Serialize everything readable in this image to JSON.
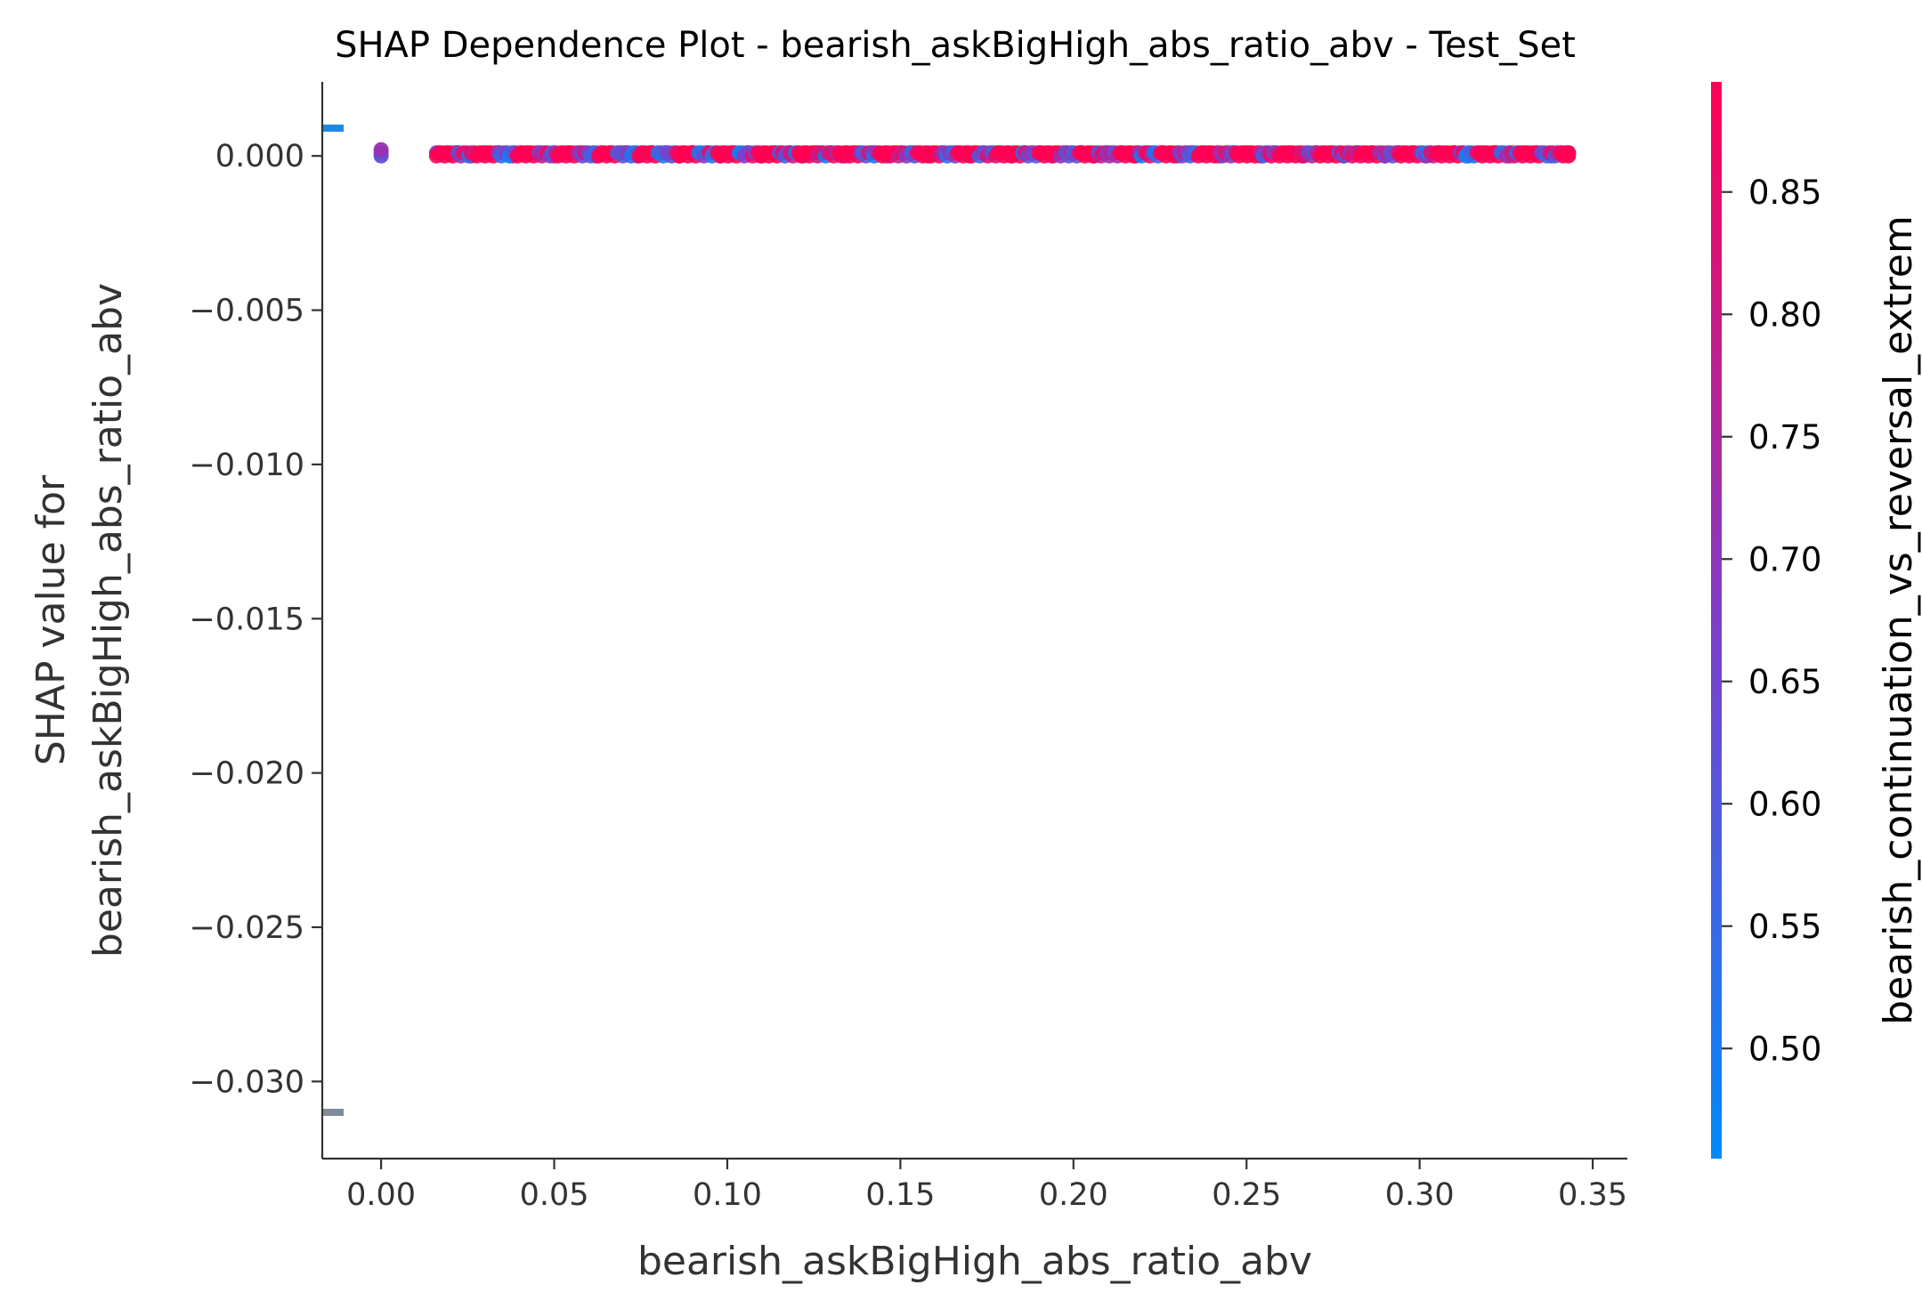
{
  "chart_data": {
    "type": "scatter",
    "title": "SHAP Dependence Plot - bearish_askBigHigh_abs_ratio_abv - Test_Set",
    "xlabel": "bearish_askBigHigh_abs_ratio_abv",
    "ylabel_lines": [
      "SHAP value for",
      "bearish_askBigHigh_abs_ratio_abv"
    ],
    "xlim": [
      -0.017,
      0.36
    ],
    "ylim": [
      -0.0325,
      0.0024
    ],
    "xticks": [
      0.0,
      0.05,
      0.1,
      0.15,
      0.2,
      0.25,
      0.3,
      0.35
    ],
    "xtick_labels": [
      "0.00",
      "0.05",
      "0.10",
      "0.15",
      "0.20",
      "0.25",
      "0.30",
      "0.35"
    ],
    "yticks": [
      0.0,
      -0.005,
      -0.01,
      -0.015,
      -0.02,
      -0.025,
      -0.03
    ],
    "ytick_labels": [
      "0.000",
      "−0.005",
      "−0.010",
      "−0.015",
      "−0.020",
      "−0.025",
      "−0.030"
    ],
    "grid": false,
    "marker_color_scale": {
      "low": "#008afb",
      "mid": "#7f3ec8",
      "high": "#ff0052"
    },
    "series": [
      {
        "points": [
          {
            "x": 0.0,
            "y": 0.0001,
            "c": 0.68
          },
          {
            "x": 0.0,
            "y": 0.0,
            "c": 0.62
          },
          {
            "x": 0.0,
            "y": 0.0002,
            "c": 0.72
          },
          {
            "x": 0.016,
            "y": 0.0001,
            "c": 0.66
          },
          {
            "x": 0.019,
            "y": 0.0001,
            "c": 0.64
          },
          {
            "x": 0.022,
            "y": 0.0001,
            "c": 0.74
          },
          {
            "x": 0.026,
            "y": 0.0,
            "c": 0.82
          },
          {
            "x": 0.03,
            "y": 0.0001,
            "c": 0.6
          },
          {
            "x": 0.034,
            "y": 0.0001,
            "c": 0.78
          },
          {
            "x": 0.038,
            "y": 0.0,
            "c": 0.86
          },
          {
            "x": 0.042,
            "y": 0.0001,
            "c": 0.7
          },
          {
            "x": 0.046,
            "y": 0.0001,
            "c": 0.55
          },
          {
            "x": 0.05,
            "y": 0.0,
            "c": 0.84
          },
          {
            "x": 0.054,
            "y": 0.0001,
            "c": 0.66
          },
          {
            "x": 0.058,
            "y": 0.0001,
            "c": 0.8
          },
          {
            "x": 0.062,
            "y": 0.0,
            "c": 0.72
          },
          {
            "x": 0.066,
            "y": 0.0001,
            "c": 0.58
          },
          {
            "x": 0.07,
            "y": 0.0001,
            "c": 0.88
          },
          {
            "x": 0.074,
            "y": 0.0,
            "c": 0.64
          },
          {
            "x": 0.078,
            "y": 0.0001,
            "c": 0.76
          },
          {
            "x": 0.082,
            "y": 0.0001,
            "c": 0.52
          },
          {
            "x": 0.086,
            "y": 0.0,
            "c": 0.83
          },
          {
            "x": 0.09,
            "y": 0.0001,
            "c": 0.69
          },
          {
            "x": 0.094,
            "y": 0.0001,
            "c": 0.61
          },
          {
            "x": 0.098,
            "y": 0.0,
            "c": 0.87
          },
          {
            "x": 0.102,
            "y": 0.0001,
            "c": 0.74
          },
          {
            "x": 0.106,
            "y": 0.0001,
            "c": 0.5
          },
          {
            "x": 0.11,
            "y": 0.0,
            "c": 0.81
          },
          {
            "x": 0.114,
            "y": 0.0001,
            "c": 0.67
          },
          {
            "x": 0.118,
            "y": 0.0001,
            "c": 0.79
          },
          {
            "x": 0.122,
            "y": 0.0,
            "c": 0.63
          },
          {
            "x": 0.126,
            "y": 0.0001,
            "c": 0.85
          },
          {
            "x": 0.13,
            "y": 0.0001,
            "c": 0.57
          },
          {
            "x": 0.134,
            "y": 0.0,
            "c": 0.73
          },
          {
            "x": 0.138,
            "y": 0.0001,
            "c": 0.88
          },
          {
            "x": 0.142,
            "y": 0.0001,
            "c": 0.65
          },
          {
            "x": 0.146,
            "y": 0.0,
            "c": 0.54
          },
          {
            "x": 0.15,
            "y": 0.0001,
            "c": 0.82
          },
          {
            "x": 0.154,
            "y": 0.0001,
            "c": 0.7
          },
          {
            "x": 0.158,
            "y": 0.0,
            "c": 0.77
          },
          {
            "x": 0.162,
            "y": 0.0001,
            "c": 0.6
          },
          {
            "x": 0.166,
            "y": 0.0001,
            "c": 0.86
          },
          {
            "x": 0.17,
            "y": 0.0,
            "c": 0.66
          },
          {
            "x": 0.174,
            "y": 0.0001,
            "c": 0.51
          },
          {
            "x": 0.178,
            "y": 0.0001,
            "c": 0.8
          },
          {
            "x": 0.182,
            "y": 0.0,
            "c": 0.72
          },
          {
            "x": 0.186,
            "y": 0.0001,
            "c": 0.84
          },
          {
            "x": 0.19,
            "y": 0.0001,
            "c": 0.62
          },
          {
            "x": 0.194,
            "y": 0.0,
            "c": 0.49
          },
          {
            "x": 0.198,
            "y": 0.0001,
            "c": 0.75
          },
          {
            "x": 0.202,
            "y": 0.0001,
            "c": 0.87
          },
          {
            "x": 0.206,
            "y": 0.0,
            "c": 0.68
          },
          {
            "x": 0.21,
            "y": 0.0001,
            "c": 0.56
          },
          {
            "x": 0.214,
            "y": 0.0001,
            "c": 0.83
          },
          {
            "x": 0.218,
            "y": 0.0,
            "c": 0.71
          },
          {
            "x": 0.222,
            "y": 0.0001,
            "c": 0.64
          },
          {
            "x": 0.226,
            "y": 0.0001,
            "c": 0.86
          },
          {
            "x": 0.23,
            "y": 0.0,
            "c": 0.53
          },
          {
            "x": 0.234,
            "y": 0.0001,
            "c": 0.78
          },
          {
            "x": 0.238,
            "y": 0.0001,
            "c": 0.69
          },
          {
            "x": 0.242,
            "y": 0.0,
            "c": 0.81
          },
          {
            "x": 0.246,
            "y": 0.0001,
            "c": 0.6
          },
          {
            "x": 0.25,
            "y": 0.0001,
            "c": 0.88
          },
          {
            "x": 0.254,
            "y": 0.0,
            "c": 0.74
          },
          {
            "x": 0.258,
            "y": 0.0001,
            "c": 0.52
          },
          {
            "x": 0.262,
            "y": 0.0001,
            "c": 0.85
          },
          {
            "x": 0.266,
            "y": 0.0,
            "c": 0.67
          },
          {
            "x": 0.27,
            "y": 0.0001,
            "c": 0.79
          },
          {
            "x": 0.274,
            "y": 0.0001,
            "c": 0.63
          },
          {
            "x": 0.278,
            "y": 0.0,
            "c": 0.87
          },
          {
            "x": 0.282,
            "y": 0.0001,
            "c": 0.58
          },
          {
            "x": 0.286,
            "y": 0.0001,
            "c": 0.73
          },
          {
            "x": 0.29,
            "y": 0.0,
            "c": 0.84
          },
          {
            "x": 0.294,
            "y": 0.0001,
            "c": 0.66
          },
          {
            "x": 0.298,
            "y": 0.0001,
            "c": 0.5
          },
          {
            "x": 0.302,
            "y": 0.0,
            "c": 0.82
          },
          {
            "x": 0.306,
            "y": 0.0001,
            "c": 0.71
          },
          {
            "x": 0.31,
            "y": 0.0001,
            "c": 0.88
          },
          {
            "x": 0.314,
            "y": 0.0,
            "c": 0.61
          },
          {
            "x": 0.318,
            "y": 0.0001,
            "c": 0.77
          },
          {
            "x": 0.322,
            "y": 0.0001,
            "c": 0.55
          },
          {
            "x": 0.326,
            "y": 0.0,
            "c": 0.86
          },
          {
            "x": 0.33,
            "y": 0.0001,
            "c": 0.69
          },
          {
            "x": 0.334,
            "y": 0.0001,
            "c": 0.8
          },
          {
            "x": 0.338,
            "y": 0.0,
            "c": 0.64
          },
          {
            "x": 0.341,
            "y": 0.0001,
            "c": 0.52
          },
          {
            "x": 0.343,
            "y": 0.0001,
            "c": 0.75
          },
          {
            "x": 0.343,
            "y": 0.0,
            "c": 0.86
          }
        ]
      }
    ],
    "nan_markers": [
      {
        "y": 0.0009,
        "color": "#1e88e5"
      },
      {
        "y": -0.031,
        "color": "#7f8c9a"
      }
    ],
    "colorbar": {
      "label": "bearish_continuation_vs_reversal_extrem",
      "range": [
        0.455,
        0.895
      ],
      "ticks": [
        0.5,
        0.55,
        0.6,
        0.65,
        0.7,
        0.75,
        0.8,
        0.85
      ],
      "tick_labels": [
        "0.50",
        "0.55",
        "0.60",
        "0.65",
        "0.70",
        "0.75",
        "0.80",
        "0.85"
      ]
    }
  }
}
